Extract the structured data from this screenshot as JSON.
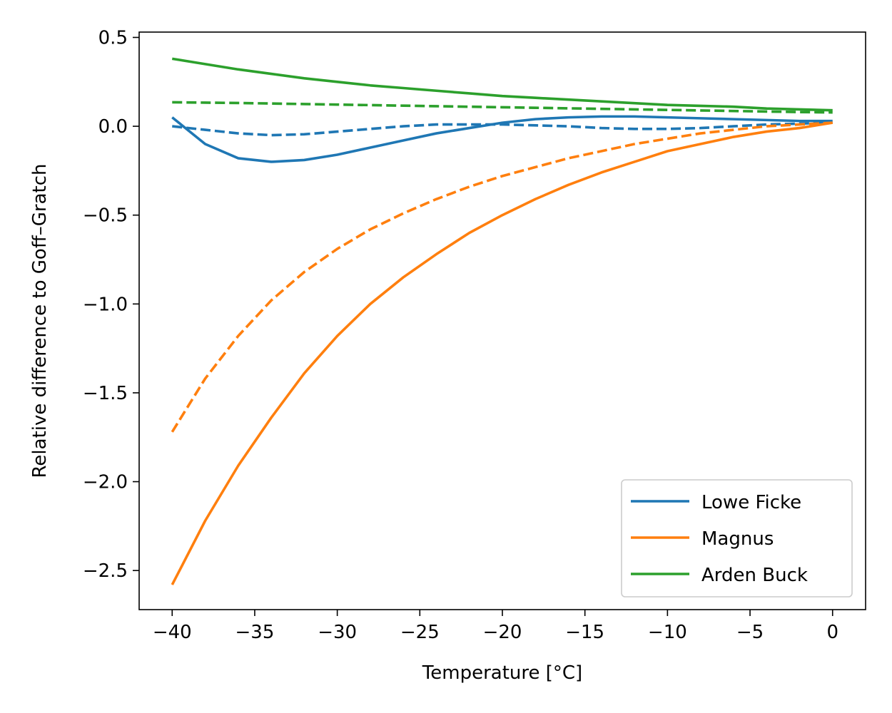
{
  "chart_data": {
    "type": "line",
    "title": "",
    "xlabel": "Temperature [°C]",
    "ylabel": "Relative difference to Goff–Gratch",
    "xlim": [
      -42,
      2
    ],
    "ylim": [
      -2.72,
      0.53
    ],
    "x_ticks": [
      -40,
      -35,
      -30,
      -25,
      -20,
      -15,
      -10,
      -5,
      0
    ],
    "x_tick_labels": [
      "−40",
      "−35",
      "−30",
      "−25",
      "−20",
      "−15",
      "−10",
      "−5",
      "0"
    ],
    "y_ticks": [
      0.5,
      0.0,
      -0.5,
      -1.0,
      -1.5,
      -2.0,
      -2.5
    ],
    "y_tick_labels": [
      "0.5",
      "0.0",
      "−0.5",
      "−1.0",
      "−1.5",
      "−2.0",
      "−2.5"
    ],
    "grid": false,
    "legend_position": "lower-right",
    "x": [
      -40,
      -38,
      -36,
      -34,
      -32,
      -30,
      -28,
      -26,
      -24,
      -22,
      -20,
      -18,
      -16,
      -14,
      -12,
      -10,
      -8,
      -6,
      -4,
      -2,
      0
    ],
    "series": [
      {
        "name": "Lowe Ficke",
        "color": "#1f77b4",
        "style": "solid",
        "values": [
          0.05,
          -0.1,
          -0.18,
          -0.2,
          -0.19,
          -0.16,
          -0.12,
          -0.08,
          -0.04,
          -0.01,
          0.02,
          0.04,
          0.05,
          0.055,
          0.055,
          0.05,
          0.045,
          0.04,
          0.035,
          0.03,
          0.03
        ]
      },
      {
        "name": "",
        "color": "#1f77b4",
        "style": "dashed",
        "values": [
          0.0,
          -0.02,
          -0.04,
          -0.05,
          -0.045,
          -0.03,
          -0.015,
          0.0,
          0.01,
          0.01,
          0.01,
          0.005,
          0.0,
          -0.01,
          -0.015,
          -0.015,
          -0.01,
          0.0,
          0.01,
          0.015,
          0.02
        ]
      },
      {
        "name": "Magnus",
        "color": "#ff7f0e",
        "style": "solid",
        "values": [
          -2.58,
          -2.22,
          -1.91,
          -1.64,
          -1.39,
          -1.18,
          -1.0,
          -0.85,
          -0.72,
          -0.6,
          -0.5,
          -0.41,
          -0.33,
          -0.26,
          -0.2,
          -0.14,
          -0.1,
          -0.06,
          -0.03,
          -0.01,
          0.02
        ]
      },
      {
        "name": "",
        "color": "#ff7f0e",
        "style": "dashed",
        "values": [
          -1.72,
          -1.42,
          -1.18,
          -0.98,
          -0.82,
          -0.69,
          -0.58,
          -0.49,
          -0.41,
          -0.34,
          -0.28,
          -0.23,
          -0.18,
          -0.14,
          -0.1,
          -0.07,
          -0.04,
          -0.02,
          0.0,
          0.01,
          0.02
        ]
      },
      {
        "name": "Arden Buck",
        "color": "#2ca02c",
        "style": "solid",
        "values": [
          0.38,
          0.35,
          0.32,
          0.295,
          0.27,
          0.25,
          0.23,
          0.215,
          0.2,
          0.185,
          0.17,
          0.16,
          0.15,
          0.14,
          0.13,
          0.12,
          0.115,
          0.11,
          0.1,
          0.095,
          0.09
        ]
      },
      {
        "name": "",
        "color": "#2ca02c",
        "style": "dashed",
        "values": [
          0.135,
          0.133,
          0.131,
          0.128,
          0.125,
          0.122,
          0.119,
          0.116,
          0.113,
          0.11,
          0.107,
          0.104,
          0.101,
          0.098,
          0.095,
          0.092,
          0.089,
          0.086,
          0.083,
          0.08,
          0.078
        ]
      }
    ]
  }
}
